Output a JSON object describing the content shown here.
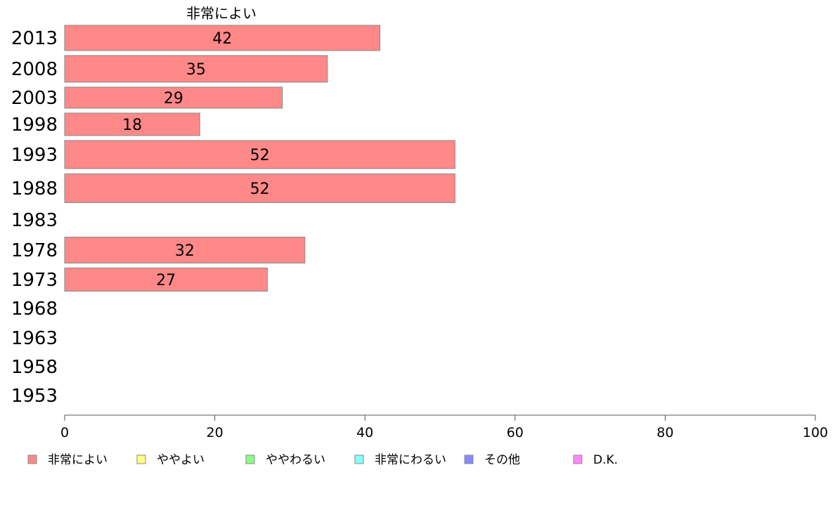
{
  "chart_data": {
    "type": "bar",
    "orientation": "horizontal",
    "stacked": true,
    "header_label": "非常によい",
    "categories": [
      "2013",
      "2008",
      "2003",
      "1998",
      "1993",
      "1988",
      "1983",
      "1978",
      "1973",
      "1968",
      "1963",
      "1958",
      "1953"
    ],
    "series": [
      {
        "name": "非常によい",
        "color": "#ff8888",
        "values": [
          42,
          35,
          29,
          18,
          52,
          52,
          null,
          32,
          27,
          null,
          null,
          null,
          null
        ]
      },
      {
        "name": "ややよい",
        "color": "#ffff88",
        "values": [
          null,
          null,
          null,
          null,
          null,
          null,
          null,
          null,
          null,
          null,
          null,
          null,
          null
        ]
      },
      {
        "name": "ややわるい",
        "color": "#88ff88",
        "values": [
          null,
          null,
          null,
          null,
          null,
          null,
          null,
          null,
          null,
          null,
          null,
          null,
          null
        ]
      },
      {
        "name": "非常にわるい",
        "color": "#88ffff",
        "values": [
          null,
          null,
          null,
          null,
          null,
          null,
          null,
          null,
          null,
          null,
          null,
          null,
          null
        ]
      },
      {
        "name": "その他",
        "color": "#8888ff",
        "values": [
          null,
          null,
          null,
          null,
          null,
          null,
          null,
          null,
          null,
          null,
          null,
          null,
          null
        ]
      },
      {
        "name": "D.K.",
        "color": "#ff88ff",
        "values": [
          null,
          null,
          null,
          null,
          null,
          null,
          null,
          null,
          null,
          null,
          null,
          null,
          null
        ]
      }
    ],
    "xlim": [
      0,
      100
    ],
    "xticks": [
      0,
      20,
      40,
      60,
      80,
      100
    ],
    "grid": false,
    "legend_position": "bottom"
  }
}
